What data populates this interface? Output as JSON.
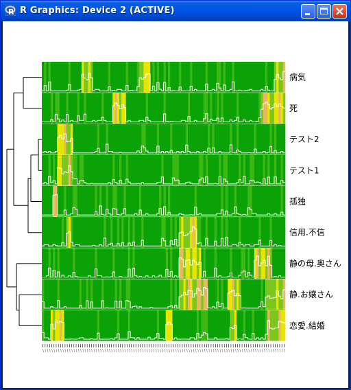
{
  "window": {
    "title": "R Graphics: Device 2 (ACTIVE)",
    "icon": "r-logo-icon",
    "controls": [
      "minimize-icon",
      "maximize-icon",
      "close-icon"
    ]
  },
  "colors": {
    "background_low": "#00a000",
    "mid": "#9acd32",
    "high_yellow": "#e6e600",
    "peak_orange": "#e8b860",
    "trace": "#ffffff",
    "dendrogram": "#000000"
  },
  "chart_data": {
    "type": "heatmap",
    "rows": [
      "病気",
      "死",
      "テスト2",
      "テスト1",
      "孤独",
      "信用.不信",
      "静の母.奥さん",
      "静.お嬢さん",
      "恋愛.結婚"
    ],
    "x_count": 110,
    "x_tick_count": 110,
    "row_order_dendrogram": "hierarchical clustering of rows (left)",
    "hot_segments": [
      {
        "row": "病気",
        "ranges": [
          [
            19,
            23
          ],
          [
            45,
            49
          ],
          [
            106,
            110
          ]
        ]
      },
      {
        "row": "死",
        "ranges": [
          [
            33,
            38
          ],
          [
            100,
            110
          ]
        ]
      },
      {
        "row": "テスト2",
        "ranges": [
          [
            8,
            14
          ]
        ]
      },
      {
        "row": "テスト1",
        "ranges": [
          [
            8,
            14
          ]
        ]
      },
      {
        "row": "孤独",
        "ranges": [
          [
            6,
            7
          ]
        ]
      },
      {
        "row": "信用.不信",
        "ranges": [
          [
            12,
            13
          ],
          [
            63,
            70
          ]
        ]
      },
      {
        "row": "静の母.奥さん",
        "ranges": [
          [
            63,
            72
          ],
          [
            97,
            104
          ]
        ]
      },
      {
        "row": "静.お嬢さん",
        "ranges": [
          [
            63,
            75
          ],
          [
            85,
            90
          ],
          [
            102,
            110
          ]
        ]
      },
      {
        "row": "恋愛.結婚",
        "ranges": [
          [
            5,
            10
          ],
          [
            57,
            59
          ],
          [
            86,
            88
          ],
          [
            103,
            110
          ]
        ]
      }
    ]
  }
}
